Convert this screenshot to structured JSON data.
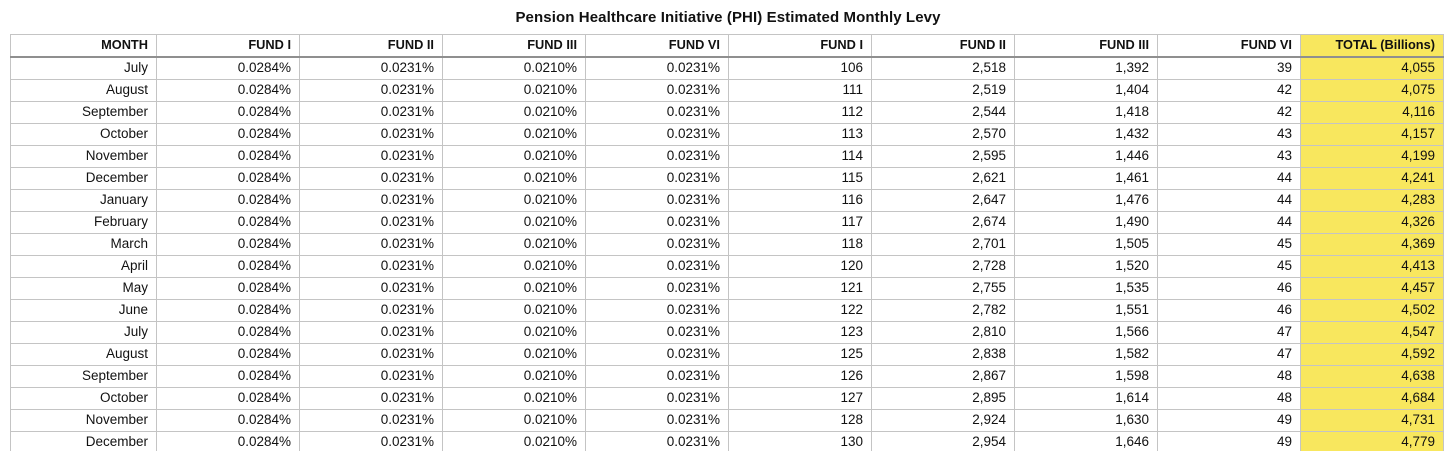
{
  "title": "Pension Healthcare Initiative (PHI) Estimated Monthly Levy",
  "chart_data": {
    "type": "table",
    "title": "Pension Healthcare Initiative (PHI) Estimated Monthly Levy",
    "columns": [
      "MONTH",
      "FUND I",
      "FUND II",
      "FUND III",
      "FUND VI",
      "FUND I",
      "FUND II",
      "FUND III",
      "FUND VI",
      "TOTAL (Billions)"
    ],
    "column_groups": {
      "rate_columns": [
        "FUND I",
        "FUND II",
        "FUND III",
        "FUND VI"
      ],
      "amount_columns": [
        "FUND I",
        "FUND II",
        "FUND III",
        "FUND VI"
      ],
      "total_column": "TOTAL (Billions)"
    },
    "highlighted_column_index": 9,
    "rows": [
      [
        "July",
        "0.0284%",
        "0.0231%",
        "0.0210%",
        "0.0231%",
        "106",
        "2,518",
        "1,392",
        "39",
        "4,055"
      ],
      [
        "August",
        "0.0284%",
        "0.0231%",
        "0.0210%",
        "0.0231%",
        "111",
        "2,519",
        "1,404",
        "42",
        "4,075"
      ],
      [
        "September",
        "0.0284%",
        "0.0231%",
        "0.0210%",
        "0.0231%",
        "112",
        "2,544",
        "1,418",
        "42",
        "4,116"
      ],
      [
        "October",
        "0.0284%",
        "0.0231%",
        "0.0210%",
        "0.0231%",
        "113",
        "2,570",
        "1,432",
        "43",
        "4,157"
      ],
      [
        "November",
        "0.0284%",
        "0.0231%",
        "0.0210%",
        "0.0231%",
        "114",
        "2,595",
        "1,446",
        "43",
        "4,199"
      ],
      [
        "December",
        "0.0284%",
        "0.0231%",
        "0.0210%",
        "0.0231%",
        "115",
        "2,621",
        "1,461",
        "44",
        "4,241"
      ],
      [
        "January",
        "0.0284%",
        "0.0231%",
        "0.0210%",
        "0.0231%",
        "116",
        "2,647",
        "1,476",
        "44",
        "4,283"
      ],
      [
        "February",
        "0.0284%",
        "0.0231%",
        "0.0210%",
        "0.0231%",
        "117",
        "2,674",
        "1,490",
        "44",
        "4,326"
      ],
      [
        "March",
        "0.0284%",
        "0.0231%",
        "0.0210%",
        "0.0231%",
        "118",
        "2,701",
        "1,505",
        "45",
        "4,369"
      ],
      [
        "April",
        "0.0284%",
        "0.0231%",
        "0.0210%",
        "0.0231%",
        "120",
        "2,728",
        "1,520",
        "45",
        "4,413"
      ],
      [
        "May",
        "0.0284%",
        "0.0231%",
        "0.0210%",
        "0.0231%",
        "121",
        "2,755",
        "1,535",
        "46",
        "4,457"
      ],
      [
        "June",
        "0.0284%",
        "0.0231%",
        "0.0210%",
        "0.0231%",
        "122",
        "2,782",
        "1,551",
        "46",
        "4,502"
      ],
      [
        "July",
        "0.0284%",
        "0.0231%",
        "0.0210%",
        "0.0231%",
        "123",
        "2,810",
        "1,566",
        "47",
        "4,547"
      ],
      [
        "August",
        "0.0284%",
        "0.0231%",
        "0.0210%",
        "0.0231%",
        "125",
        "2,838",
        "1,582",
        "47",
        "4,592"
      ],
      [
        "September",
        "0.0284%",
        "0.0231%",
        "0.0210%",
        "0.0231%",
        "126",
        "2,867",
        "1,598",
        "48",
        "4,638"
      ],
      [
        "October",
        "0.0284%",
        "0.0231%",
        "0.0210%",
        "0.0231%",
        "127",
        "2,895",
        "1,614",
        "48",
        "4,684"
      ],
      [
        "November",
        "0.0284%",
        "0.0231%",
        "0.0210%",
        "0.0231%",
        "128",
        "2,924",
        "1,630",
        "49",
        "4,731"
      ],
      [
        "December",
        "0.0284%",
        "0.0231%",
        "0.0210%",
        "0.0231%",
        "130",
        "2,954",
        "1,646",
        "49",
        "4,779"
      ]
    ]
  },
  "colors": {
    "highlight": "#f8e75e",
    "border_inner": "#c4c4c4",
    "border_outer": "#a8a8a8",
    "header_rule": "#8f8f8f",
    "text": "#111111",
    "background": "#ffffff"
  }
}
